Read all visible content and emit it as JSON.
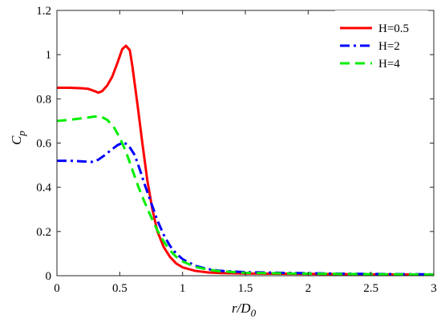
{
  "chart_data": {
    "type": "line",
    "xlabel": "r/D",
    "xlabel_sub": "0",
    "ylabel": "C",
    "ylabel_sub": "p",
    "xlim": [
      0,
      3
    ],
    "ylim": [
      0,
      1.2
    ],
    "x_ticks": [
      "0",
      "0.5",
      "1",
      "1.5",
      "2",
      "2.5",
      "3"
    ],
    "y_ticks": [
      "0",
      "0.2",
      "0.4",
      "0.6",
      "0.8",
      "1",
      "1.2"
    ],
    "grid": false,
    "legend_position": "top-right",
    "series": [
      {
        "name": "H=0.5",
        "color": "#ff0000",
        "style": "solid",
        "points": [
          [
            0,
            0.85
          ],
          [
            0.1,
            0.85
          ],
          [
            0.2,
            0.848
          ],
          [
            0.25,
            0.845
          ],
          [
            0.3,
            0.835
          ],
          [
            0.33,
            0.828
          ],
          [
            0.36,
            0.835
          ],
          [
            0.4,
            0.86
          ],
          [
            0.44,
            0.9
          ],
          [
            0.48,
            0.96
          ],
          [
            0.52,
            1.025
          ],
          [
            0.55,
            1.04
          ],
          [
            0.58,
            1.02
          ],
          [
            0.6,
            0.95
          ],
          [
            0.64,
            0.78
          ],
          [
            0.68,
            0.6
          ],
          [
            0.72,
            0.43
          ],
          [
            0.76,
            0.3
          ],
          [
            0.8,
            0.2
          ],
          [
            0.85,
            0.13
          ],
          [
            0.9,
            0.085
          ],
          [
            0.95,
            0.055
          ],
          [
            1.0,
            0.038
          ],
          [
            1.1,
            0.022
          ],
          [
            1.2,
            0.015
          ],
          [
            1.3,
            0.012
          ],
          [
            1.5,
            0.01
          ],
          [
            2.0,
            0.008
          ],
          [
            2.5,
            0.006
          ],
          [
            3.0,
            0.005
          ]
        ]
      },
      {
        "name": "H=2",
        "color": "#0000ff",
        "style": "dashdot",
        "points": [
          [
            0,
            0.52
          ],
          [
            0.1,
            0.52
          ],
          [
            0.2,
            0.517
          ],
          [
            0.28,
            0.515
          ],
          [
            0.33,
            0.525
          ],
          [
            0.38,
            0.545
          ],
          [
            0.43,
            0.568
          ],
          [
            0.48,
            0.59
          ],
          [
            0.53,
            0.603
          ],
          [
            0.57,
            0.59
          ],
          [
            0.62,
            0.545
          ],
          [
            0.66,
            0.48
          ],
          [
            0.7,
            0.41
          ],
          [
            0.75,
            0.33
          ],
          [
            0.8,
            0.25
          ],
          [
            0.85,
            0.185
          ],
          [
            0.9,
            0.135
          ],
          [
            0.95,
            0.1
          ],
          [
            1.0,
            0.075
          ],
          [
            1.1,
            0.045
          ],
          [
            1.2,
            0.03
          ],
          [
            1.3,
            0.022
          ],
          [
            1.5,
            0.016
          ],
          [
            2.0,
            0.011
          ],
          [
            2.5,
            0.008
          ],
          [
            3.0,
            0.006
          ]
        ]
      },
      {
        "name": "H=4",
        "color": "#00ee00",
        "style": "dashed",
        "points": [
          [
            0,
            0.7
          ],
          [
            0.1,
            0.705
          ],
          [
            0.2,
            0.712
          ],
          [
            0.3,
            0.72
          ],
          [
            0.35,
            0.72
          ],
          [
            0.4,
            0.705
          ],
          [
            0.45,
            0.675
          ],
          [
            0.5,
            0.625
          ],
          [
            0.55,
            0.56
          ],
          [
            0.6,
            0.48
          ],
          [
            0.65,
            0.4
          ],
          [
            0.7,
            0.33
          ],
          [
            0.75,
            0.265
          ],
          [
            0.8,
            0.205
          ],
          [
            0.85,
            0.155
          ],
          [
            0.9,
            0.115
          ],
          [
            0.95,
            0.085
          ],
          [
            1.0,
            0.065
          ],
          [
            1.1,
            0.04
          ],
          [
            1.2,
            0.028
          ],
          [
            1.3,
            0.02
          ],
          [
            1.5,
            0.013
          ],
          [
            2.0,
            0.009
          ],
          [
            2.5,
            0.007
          ],
          [
            3.0,
            0.005
          ]
        ]
      }
    ]
  }
}
